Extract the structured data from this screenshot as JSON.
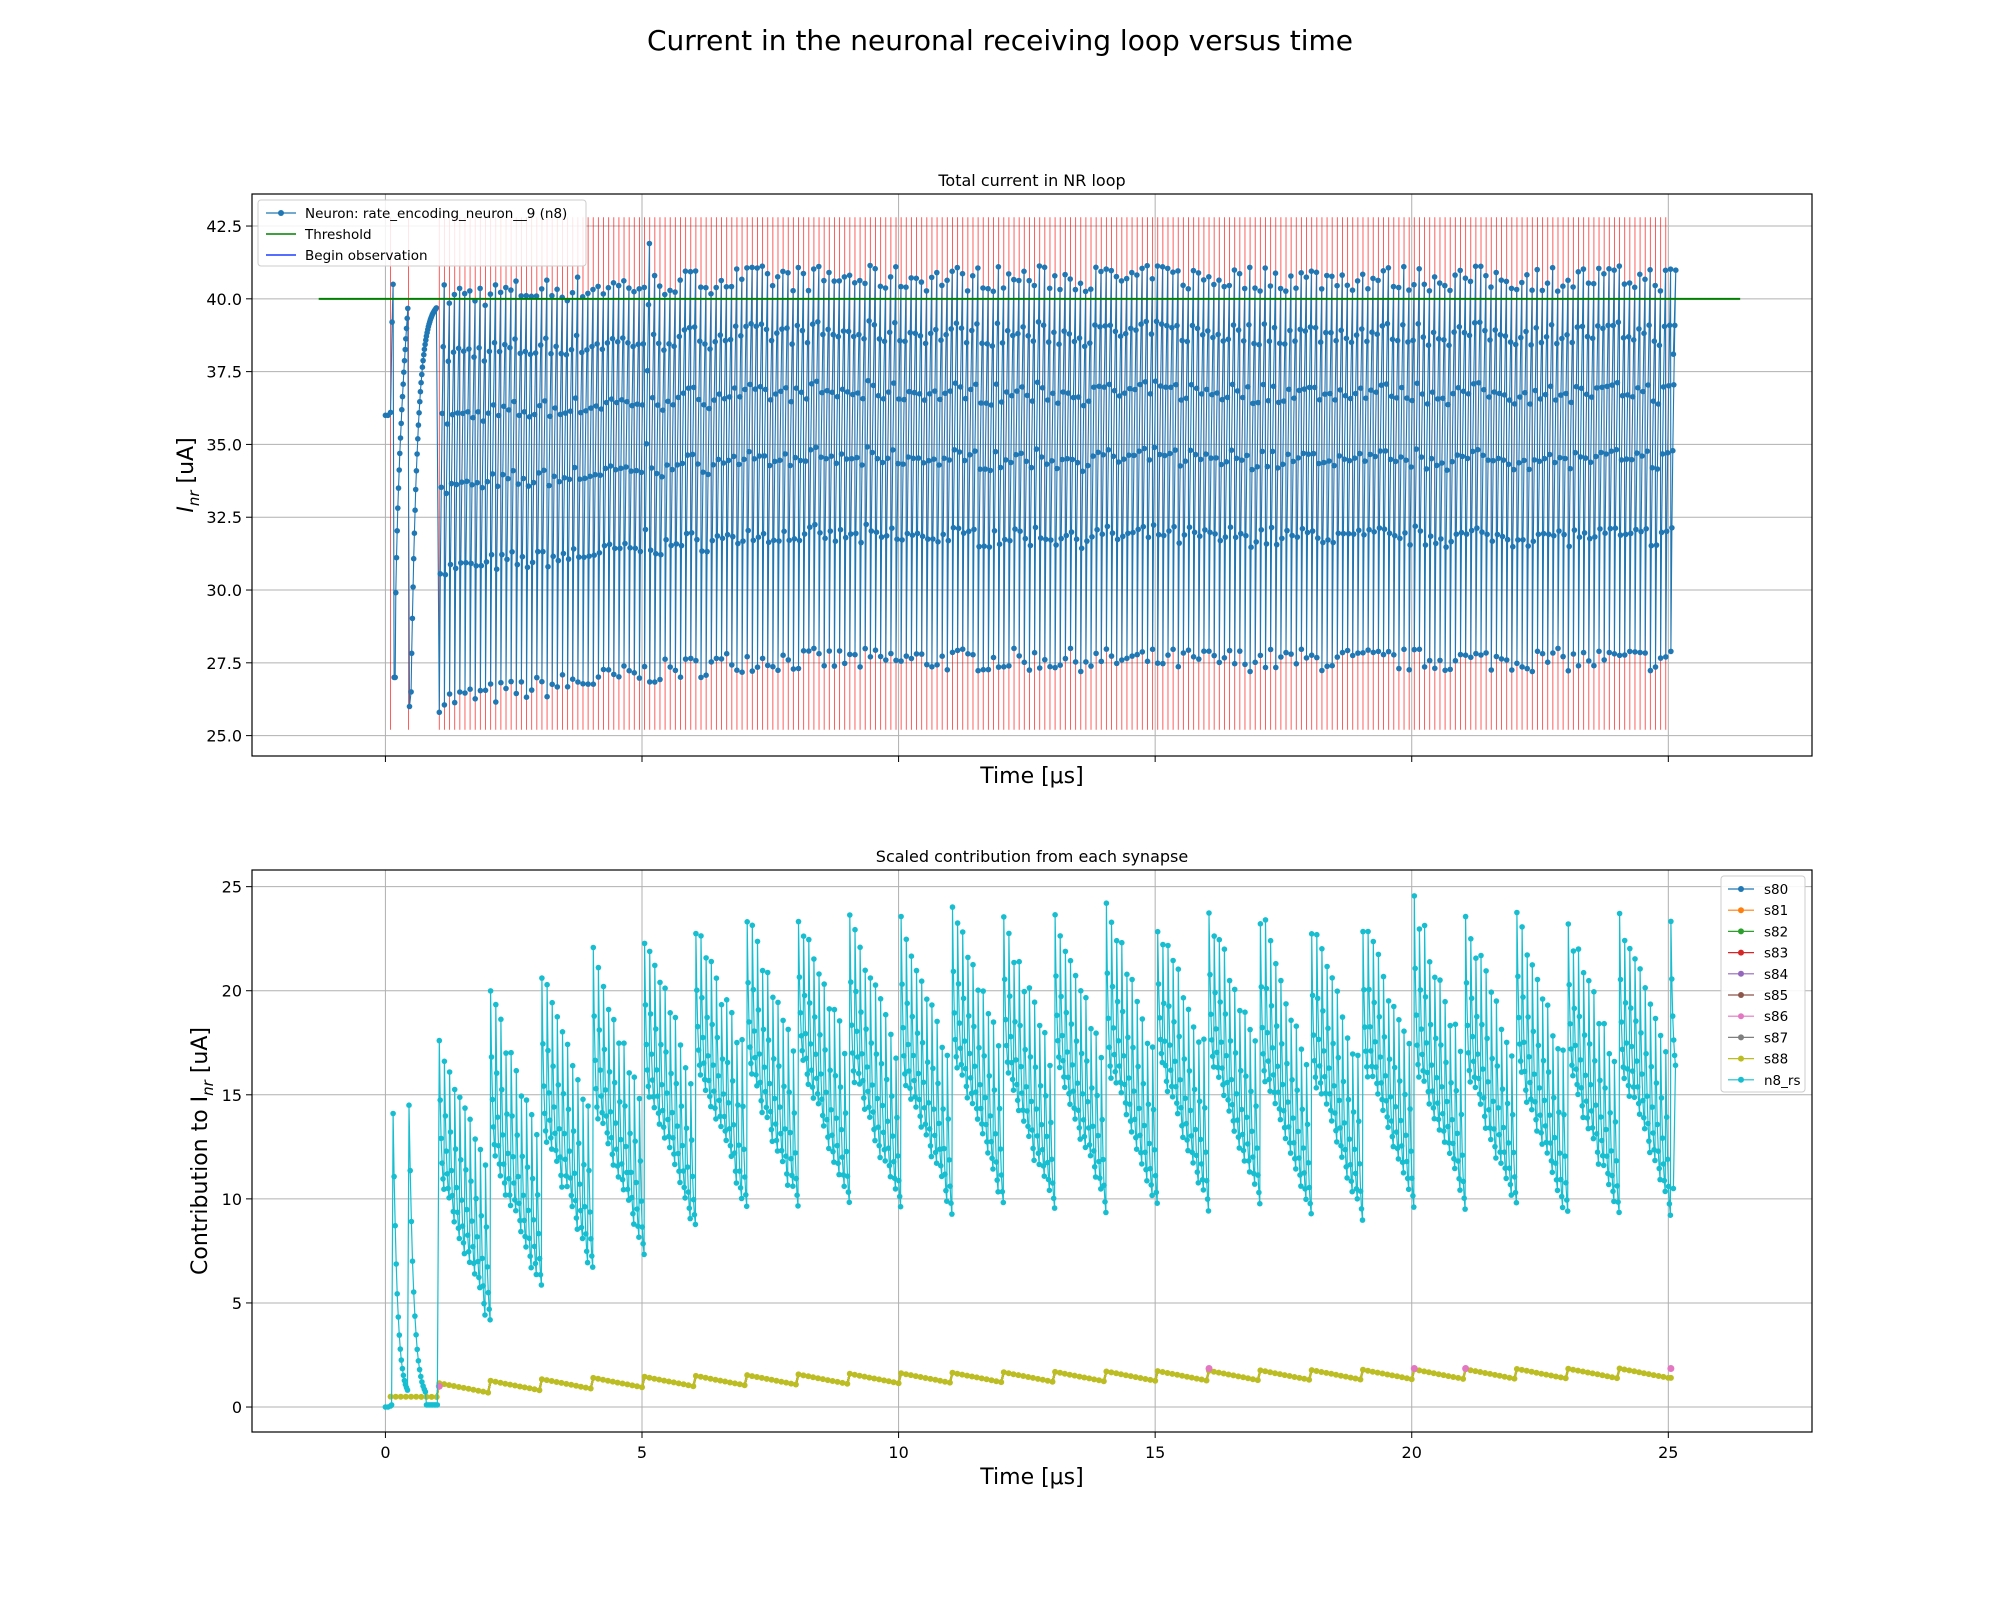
{
  "figure": {
    "suptitle": "Current in the neuronal receiving loop versus time"
  },
  "chart_data": [
    {
      "type": "line",
      "title": "Total current in NR loop",
      "xlabel": "Time [μs]",
      "ylabel": "I_nr [uA]",
      "ylabel_main": "I",
      "ylabel_sub": "nr",
      "ylabel_unit": " [uA]",
      "xlim": [
        -2.6,
        27.8
      ],
      "ylim": [
        24.3,
        43.6
      ],
      "yticks": [
        "25.0",
        "27.5",
        "30.0",
        "32.5",
        "35.0",
        "37.5",
        "40.0",
        "42.5"
      ],
      "xticks_labeled": false,
      "grid": true,
      "legend_position": "top-left",
      "series": [
        {
          "name": "Neuron: rate_encoding_neuron__9 (n8)",
          "color": "#1f77b4",
          "marker": "dot",
          "description_points": [
            [
              0.0,
              36.0
            ],
            [
              0.1,
              36.0
            ],
            [
              0.15,
              40.5
            ],
            [
              0.18,
              27.0
            ],
            [
              0.3,
              39.8
            ],
            [
              0.45,
              40.0
            ],
            [
              0.48,
              26.0
            ],
            [
              0.6,
              38.0
            ],
            [
              0.75,
              39.6
            ],
            [
              0.95,
              39.7
            ],
            [
              1.05,
              26.1
            ],
            [
              1.2,
              40.2
            ],
            [
              1.35,
              26.3
            ],
            [
              1.5,
              40.3
            ],
            [
              2.0,
              26.5
            ],
            [
              2.5,
              40.4
            ],
            [
              3.0,
              26.8
            ],
            [
              5.0,
              41.9
            ],
            [
              5.1,
              26.9
            ],
            [
              10.0,
              40.3
            ],
            [
              10.1,
              27.3
            ],
            [
              15.0,
              41.1
            ],
            [
              15.1,
              27.2
            ],
            [
              20.0,
              40.7
            ],
            [
              20.1,
              27.3
            ],
            [
              25.0,
              39.0
            ],
            [
              25.05,
              27.5
            ],
            [
              25.1,
              38.1
            ]
          ],
          "period_us": 0.1,
          "peak_range": [
            40.0,
            41.0
          ],
          "trough_range": [
            26.5,
            28.5
          ],
          "x_range": [
            0.0,
            25.1
          ]
        },
        {
          "name": "Threshold",
          "color": "#008000",
          "x": [
            -1.3,
            26.4
          ],
          "y": [
            40.0,
            40.0
          ]
        },
        {
          "name": "Begin observation",
          "color": "#ff0000",
          "style": "vertical lines",
          "legend_color": "#1f3fff",
          "y_span": [
            25.2,
            42.8
          ],
          "x_range": [
            0.1,
            25.0
          ]
        }
      ]
    },
    {
      "type": "line",
      "title": "Scaled contribution from each synapse",
      "xlabel": "Time [μs]",
      "ylabel": "Contribution to I_nr [uA]",
      "ylabel_main": "Contribution to I",
      "ylabel_sub": "nr",
      "ylabel_unit": " [uA]",
      "xlim": [
        -2.6,
        27.8
      ],
      "ylim": [
        -1.2,
        25.8
      ],
      "xticks": [
        "0",
        "5",
        "10",
        "15",
        "20",
        "25"
      ],
      "yticks": [
        "0",
        "5",
        "10",
        "15",
        "20",
        "25"
      ],
      "grid": true,
      "legend_position": "top-right",
      "series": [
        {
          "name": "s80",
          "color": "#1f77b4",
          "marker": "dot"
        },
        {
          "name": "s81",
          "color": "#ff7f0e",
          "marker": "dot"
        },
        {
          "name": "s82",
          "color": "#2ca02c",
          "marker": "dot"
        },
        {
          "name": "s83",
          "color": "#d62728",
          "marker": "dot"
        },
        {
          "name": "s84",
          "color": "#9467bd",
          "marker": "dot"
        },
        {
          "name": "s85",
          "color": "#8c564b",
          "marker": "dot"
        },
        {
          "name": "s86",
          "color": "#e377c2",
          "marker": "dot"
        },
        {
          "name": "s87",
          "color": "#7f7f7f",
          "marker": "dot"
        },
        {
          "name": "s88",
          "color": "#bcbd22",
          "marker": "dot",
          "description_points": [
            [
              0.1,
              0.5
            ],
            [
              1.0,
              0.5
            ],
            [
              1.05,
              1.0
            ],
            [
              2.0,
              0.8
            ],
            [
              2.05,
              1.2
            ],
            [
              3.0,
              1.0
            ],
            [
              3.05,
              1.4
            ],
            [
              5.0,
              1.2
            ],
            [
              5.05,
              1.6
            ],
            [
              10.0,
              1.4
            ],
            [
              10.05,
              1.8
            ],
            [
              25.0,
              1.4
            ]
          ],
          "period_us": 1.0,
          "ramp_range_late": [
            1.35,
            1.85
          ]
        },
        {
          "name": "n8_rs",
          "color": "#17becf",
          "marker": "dot",
          "description_points": [
            [
              0.0,
              0.0
            ],
            [
              0.12,
              0.0
            ],
            [
              0.15,
              14.0
            ],
            [
              0.4,
              0.5
            ],
            [
              0.45,
              14.5
            ],
            [
              0.8,
              0.3
            ],
            [
              1.0,
              0.1
            ],
            [
              1.05,
              14.0
            ],
            [
              1.15,
              17.7
            ],
            [
              1.6,
              2.8
            ],
            [
              1.85,
              2.5
            ],
            [
              2.2,
              19.6
            ],
            [
              3.0,
              4.0
            ],
            [
              3.2,
              20.8
            ],
            [
              4.0,
              5.2
            ],
            [
              4.2,
              21.7
            ],
            [
              5.0,
              6.0
            ],
            [
              5.2,
              22.7
            ],
            [
              10.0,
              8.3
            ],
            [
              10.2,
              23.3
            ],
            [
              15.0,
              8.0
            ],
            [
              15.1,
              23.9
            ],
            [
              20.0,
              8.0
            ],
            [
              22.2,
              24.6
            ],
            [
              25.0,
              8.0
            ],
            [
              25.1,
              10.5
            ]
          ],
          "period_us": 0.1,
          "envelope_period_us": 1.0
        }
      ]
    }
  ]
}
